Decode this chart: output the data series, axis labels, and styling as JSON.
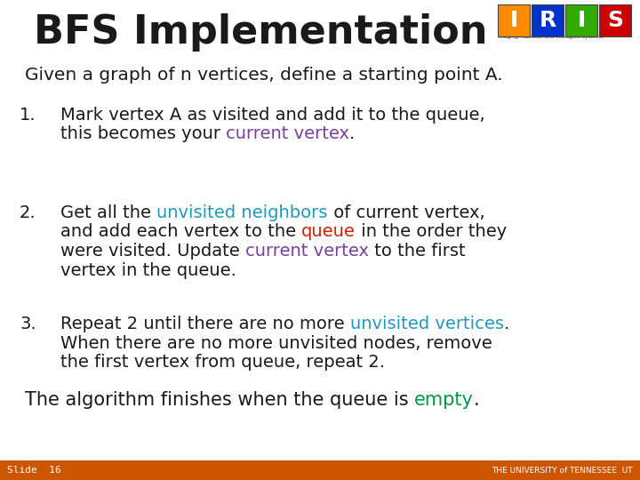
{
  "title": "BFS Implementation",
  "background_color": "#ffffff",
  "title_color": "#1a1a1a",
  "title_fontsize": 32,
  "subtitle": "Given a graph of n vertices, define a starting point A.",
  "subtitle_color": "#1a1a1a",
  "subtitle_fontsize": 14.5,
  "body_fontsize": 14,
  "body_color": "#1a1a1a",
  "highlight_purple": "#7B3FA0",
  "highlight_cyan": "#2299BB",
  "highlight_red": "#CC2200",
  "highlight_green": "#009944",
  "footer_bg": "#CC5500",
  "footer_text": "Slide  16",
  "footer_text_color": "#ffffff",
  "footer_fontsize": 8,
  "footer_line_fontsize": 15,
  "iris_colors": [
    "#FF8C00",
    "#0033CC",
    "#33AA00",
    "#CC0000"
  ],
  "iris_letters": [
    "I",
    "R",
    "I",
    "S"
  ],
  "iris_header": "Imaging, Robotics, and Intelligent Systems",
  "items": [
    {
      "number": "1.",
      "lines": [
        [
          {
            "text": "Mark vertex A as visited and add it to the queue,",
            "color": "#1a1a1a"
          }
        ],
        [
          {
            "text": "this becomes your ",
            "color": "#1a1a1a"
          },
          {
            "text": "current vertex",
            "color": "#7B3FA0"
          },
          {
            "text": ".",
            "color": "#1a1a1a"
          }
        ]
      ]
    },
    {
      "number": "2.",
      "lines": [
        [
          {
            "text": "Get all the ",
            "color": "#1a1a1a"
          },
          {
            "text": "unvisited neighbors",
            "color": "#2299BB"
          },
          {
            "text": " of current vertex,",
            "color": "#1a1a1a"
          }
        ],
        [
          {
            "text": "and add each vertex to the ",
            "color": "#1a1a1a"
          },
          {
            "text": "queue",
            "color": "#CC2200"
          },
          {
            "text": " in the order they",
            "color": "#1a1a1a"
          }
        ],
        [
          {
            "text": "were visited. Update ",
            "color": "#1a1a1a"
          },
          {
            "text": "current vertex",
            "color": "#7B3FA0"
          },
          {
            "text": " to the first",
            "color": "#1a1a1a"
          }
        ],
        [
          {
            "text": "vertex in the queue.",
            "color": "#1a1a1a"
          }
        ]
      ]
    },
    {
      "number": "3.",
      "lines": [
        [
          {
            "text": "Repeat 2 until there are no more ",
            "color": "#1a1a1a"
          },
          {
            "text": "unvisited vertices",
            "color": "#2299BB"
          },
          {
            "text": ".",
            "color": "#1a1a1a"
          }
        ],
        [
          {
            "text": "When there are no more unvisited nodes, remove",
            "color": "#1a1a1a"
          }
        ],
        [
          {
            "text": "the first vertex from queue, repeat 2.",
            "color": "#1a1a1a"
          }
        ]
      ]
    }
  ],
  "footer_line": [
    {
      "text": "The algorithm finishes when the queue is ",
      "color": "#1a1a1a"
    },
    {
      "text": "empty",
      "color": "#009944"
    },
    {
      "text": ".",
      "color": "#1a1a1a"
    }
  ]
}
